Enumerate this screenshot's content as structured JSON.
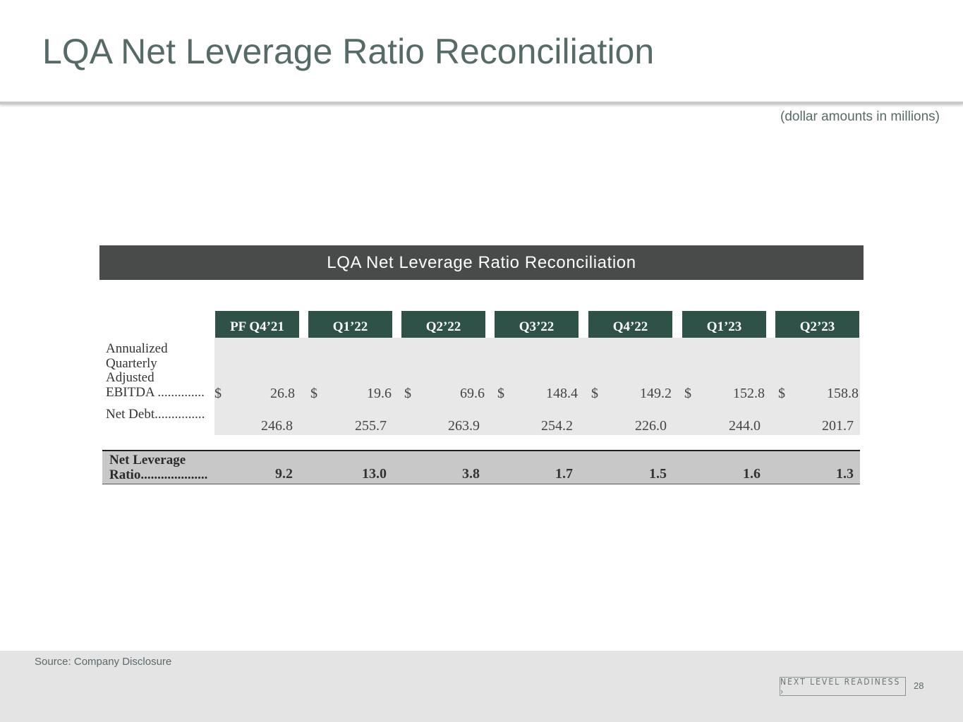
{
  "slide": {
    "title": "LQA Net Leverage Ratio Reconciliation",
    "units_note": "(dollar amounts in millions)"
  },
  "table": {
    "banner_title": "LQA Net Leverage Ratio Reconciliation",
    "columns": [
      "PF Q4’21",
      "Q1’22",
      "Q2’22",
      "Q3’22",
      "Q4’22",
      "Q1’23",
      "Q2’23"
    ],
    "currency_symbol": "$",
    "rows": {
      "ebitda": {
        "label_lines": [
          "Annualized",
          "Quarterly",
          "Adjusted",
          "EBITDA .............."
        ],
        "values": [
          "26.8",
          "19.6",
          "69.6",
          "148.4",
          "149.2",
          "152.8",
          "158.8"
        ]
      },
      "net_debt": {
        "label": "Net Debt...............",
        "values": [
          "246.8",
          "255.7",
          "263.9",
          "254.2",
          "226.0",
          "244.0",
          "201.7"
        ]
      },
      "net_leverage_ratio": {
        "label_lines": [
          "Net Leverage",
          "Ratio...................."
        ],
        "values": [
          "9.2",
          "13.0",
          "3.8",
          "1.7",
          "1.5",
          "1.6",
          "1.3"
        ]
      }
    }
  },
  "footer": {
    "source": "Source: Company Disclosure",
    "brand": "NEXT LEVEL READINESS ›",
    "page_number": "28"
  },
  "colors": {
    "title": "#566b68",
    "banner": "#494b4a",
    "header_green": "#2e5248",
    "panel_gray": "#e8e8e8",
    "ratio_band": "#c8c8c8",
    "footer": "#e4e4e4"
  }
}
